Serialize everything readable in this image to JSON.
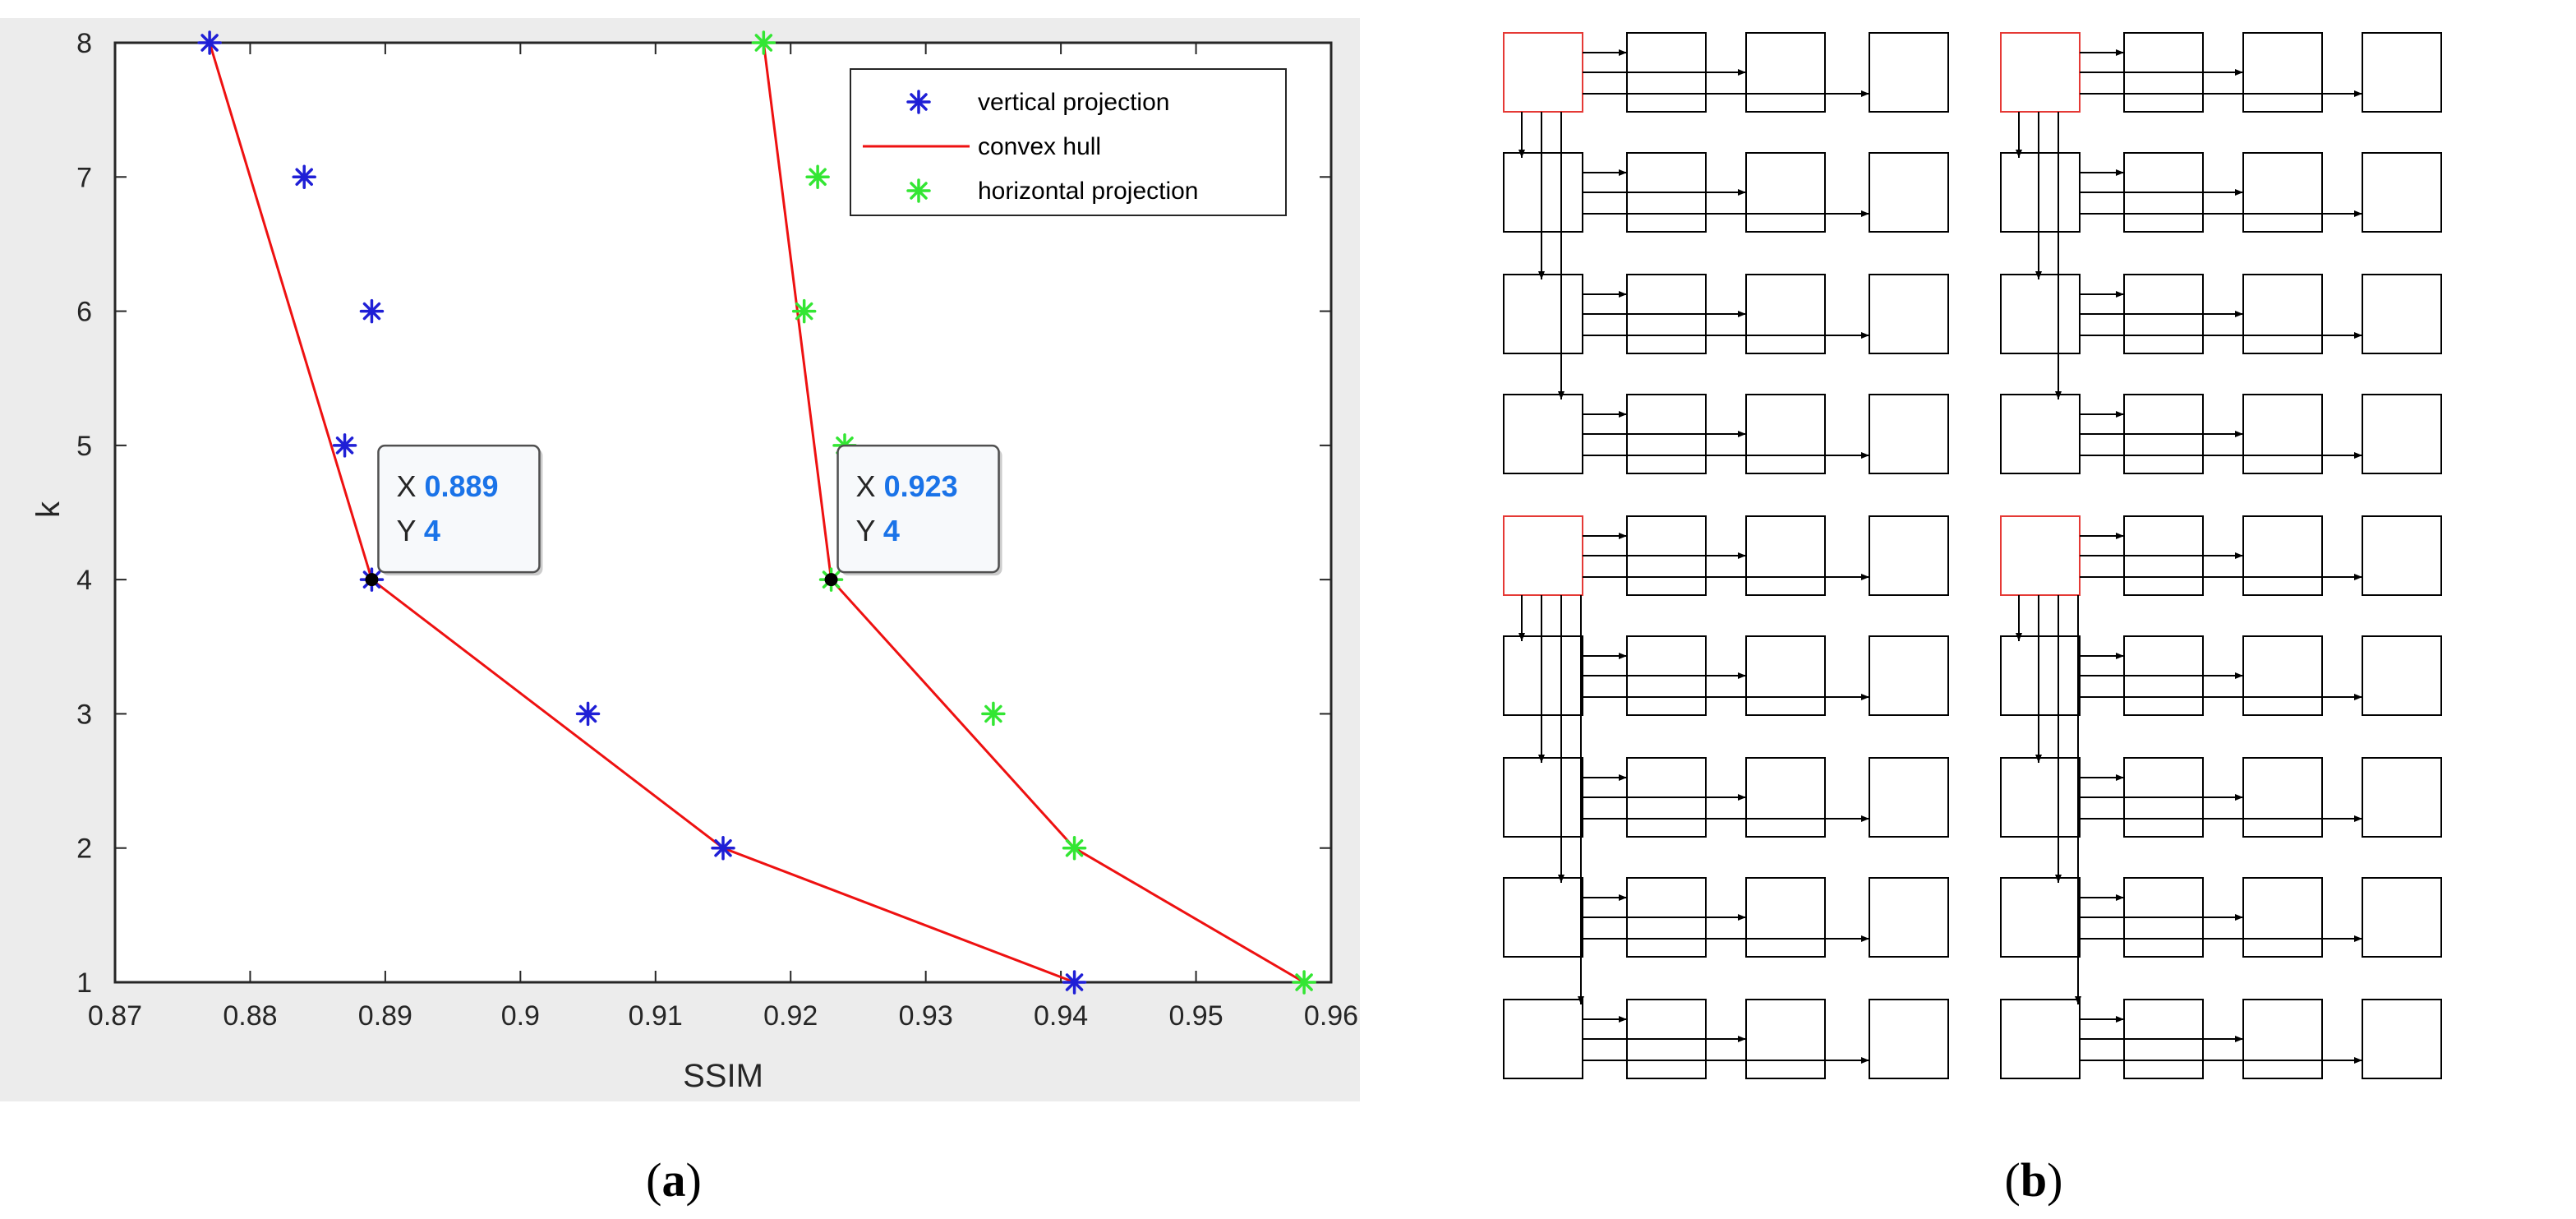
{
  "chart_data": [
    {
      "type": "scatter",
      "xlabel": "SSIM",
      "ylabel": "k",
      "xlim": [
        0.87,
        0.96
      ],
      "ylim": [
        1,
        8
      ],
      "xticks": [
        "0.87",
        "0.88",
        "0.89",
        "0.9",
        "0.91",
        "0.92",
        "0.93",
        "0.94",
        "0.95",
        "0.96"
      ],
      "yticks": [
        "1",
        "2",
        "3",
        "4",
        "5",
        "6",
        "7",
        "8"
      ],
      "legend": [
        "vertical projection",
        "convex hull",
        "horizontal projection"
      ],
      "legend_position": "top-right",
      "series": [
        {
          "name": "vertical projection",
          "marker": "*",
          "color": "#1f1fd6",
          "points": [
            [
              0.877,
              8
            ],
            [
              0.884,
              7
            ],
            [
              0.889,
              6
            ],
            [
              0.887,
              5
            ],
            [
              0.889,
              4
            ],
            [
              0.905,
              3
            ],
            [
              0.915,
              2
            ],
            [
              0.941,
              1
            ]
          ]
        },
        {
          "name": "horizontal projection",
          "marker": "*",
          "color": "#33e633",
          "points": [
            [
              0.918,
              8
            ],
            [
              0.922,
              7
            ],
            [
              0.921,
              6
            ],
            [
              0.924,
              5
            ],
            [
              0.923,
              4
            ],
            [
              0.935,
              3
            ],
            [
              0.941,
              2
            ],
            [
              0.958,
              1
            ]
          ]
        },
        {
          "name": "convex hull",
          "line": true,
          "color": "#ee1111",
          "paths": [
            [
              [
                0.877,
                8
              ],
              [
                0.889,
                4
              ],
              [
                0.915,
                2
              ],
              [
                0.941,
                1
              ]
            ],
            [
              [
                0.918,
                8
              ],
              [
                0.923,
                4
              ],
              [
                0.941,
                2
              ],
              [
                0.958,
                1
              ]
            ]
          ]
        }
      ],
      "datatips": [
        {
          "x_label": "X",
          "x_value": "0.889",
          "y_label": "Y",
          "y_value": "4",
          "point": [
            0.889,
            4
          ]
        },
        {
          "x_label": "X",
          "x_value": "0.923",
          "y_label": "Y",
          "y_value": "4",
          "point": [
            0.923,
            4
          ]
        }
      ],
      "colors": {
        "figure_bg": "#ececec",
        "axes_bg": "#ffffff",
        "axis": "#262626",
        "datatip_value": "#1a73e8"
      }
    }
  ],
  "diagram": {
    "rows": 8,
    "cols": 4,
    "colors": {
      "head": "#e53935",
      "box": "#000000"
    }
  },
  "captions": {
    "a": {
      "open": "(",
      "letter": "a",
      "close": ")"
    },
    "b": {
      "open": "(",
      "letter": "b",
      "close": ")"
    }
  }
}
